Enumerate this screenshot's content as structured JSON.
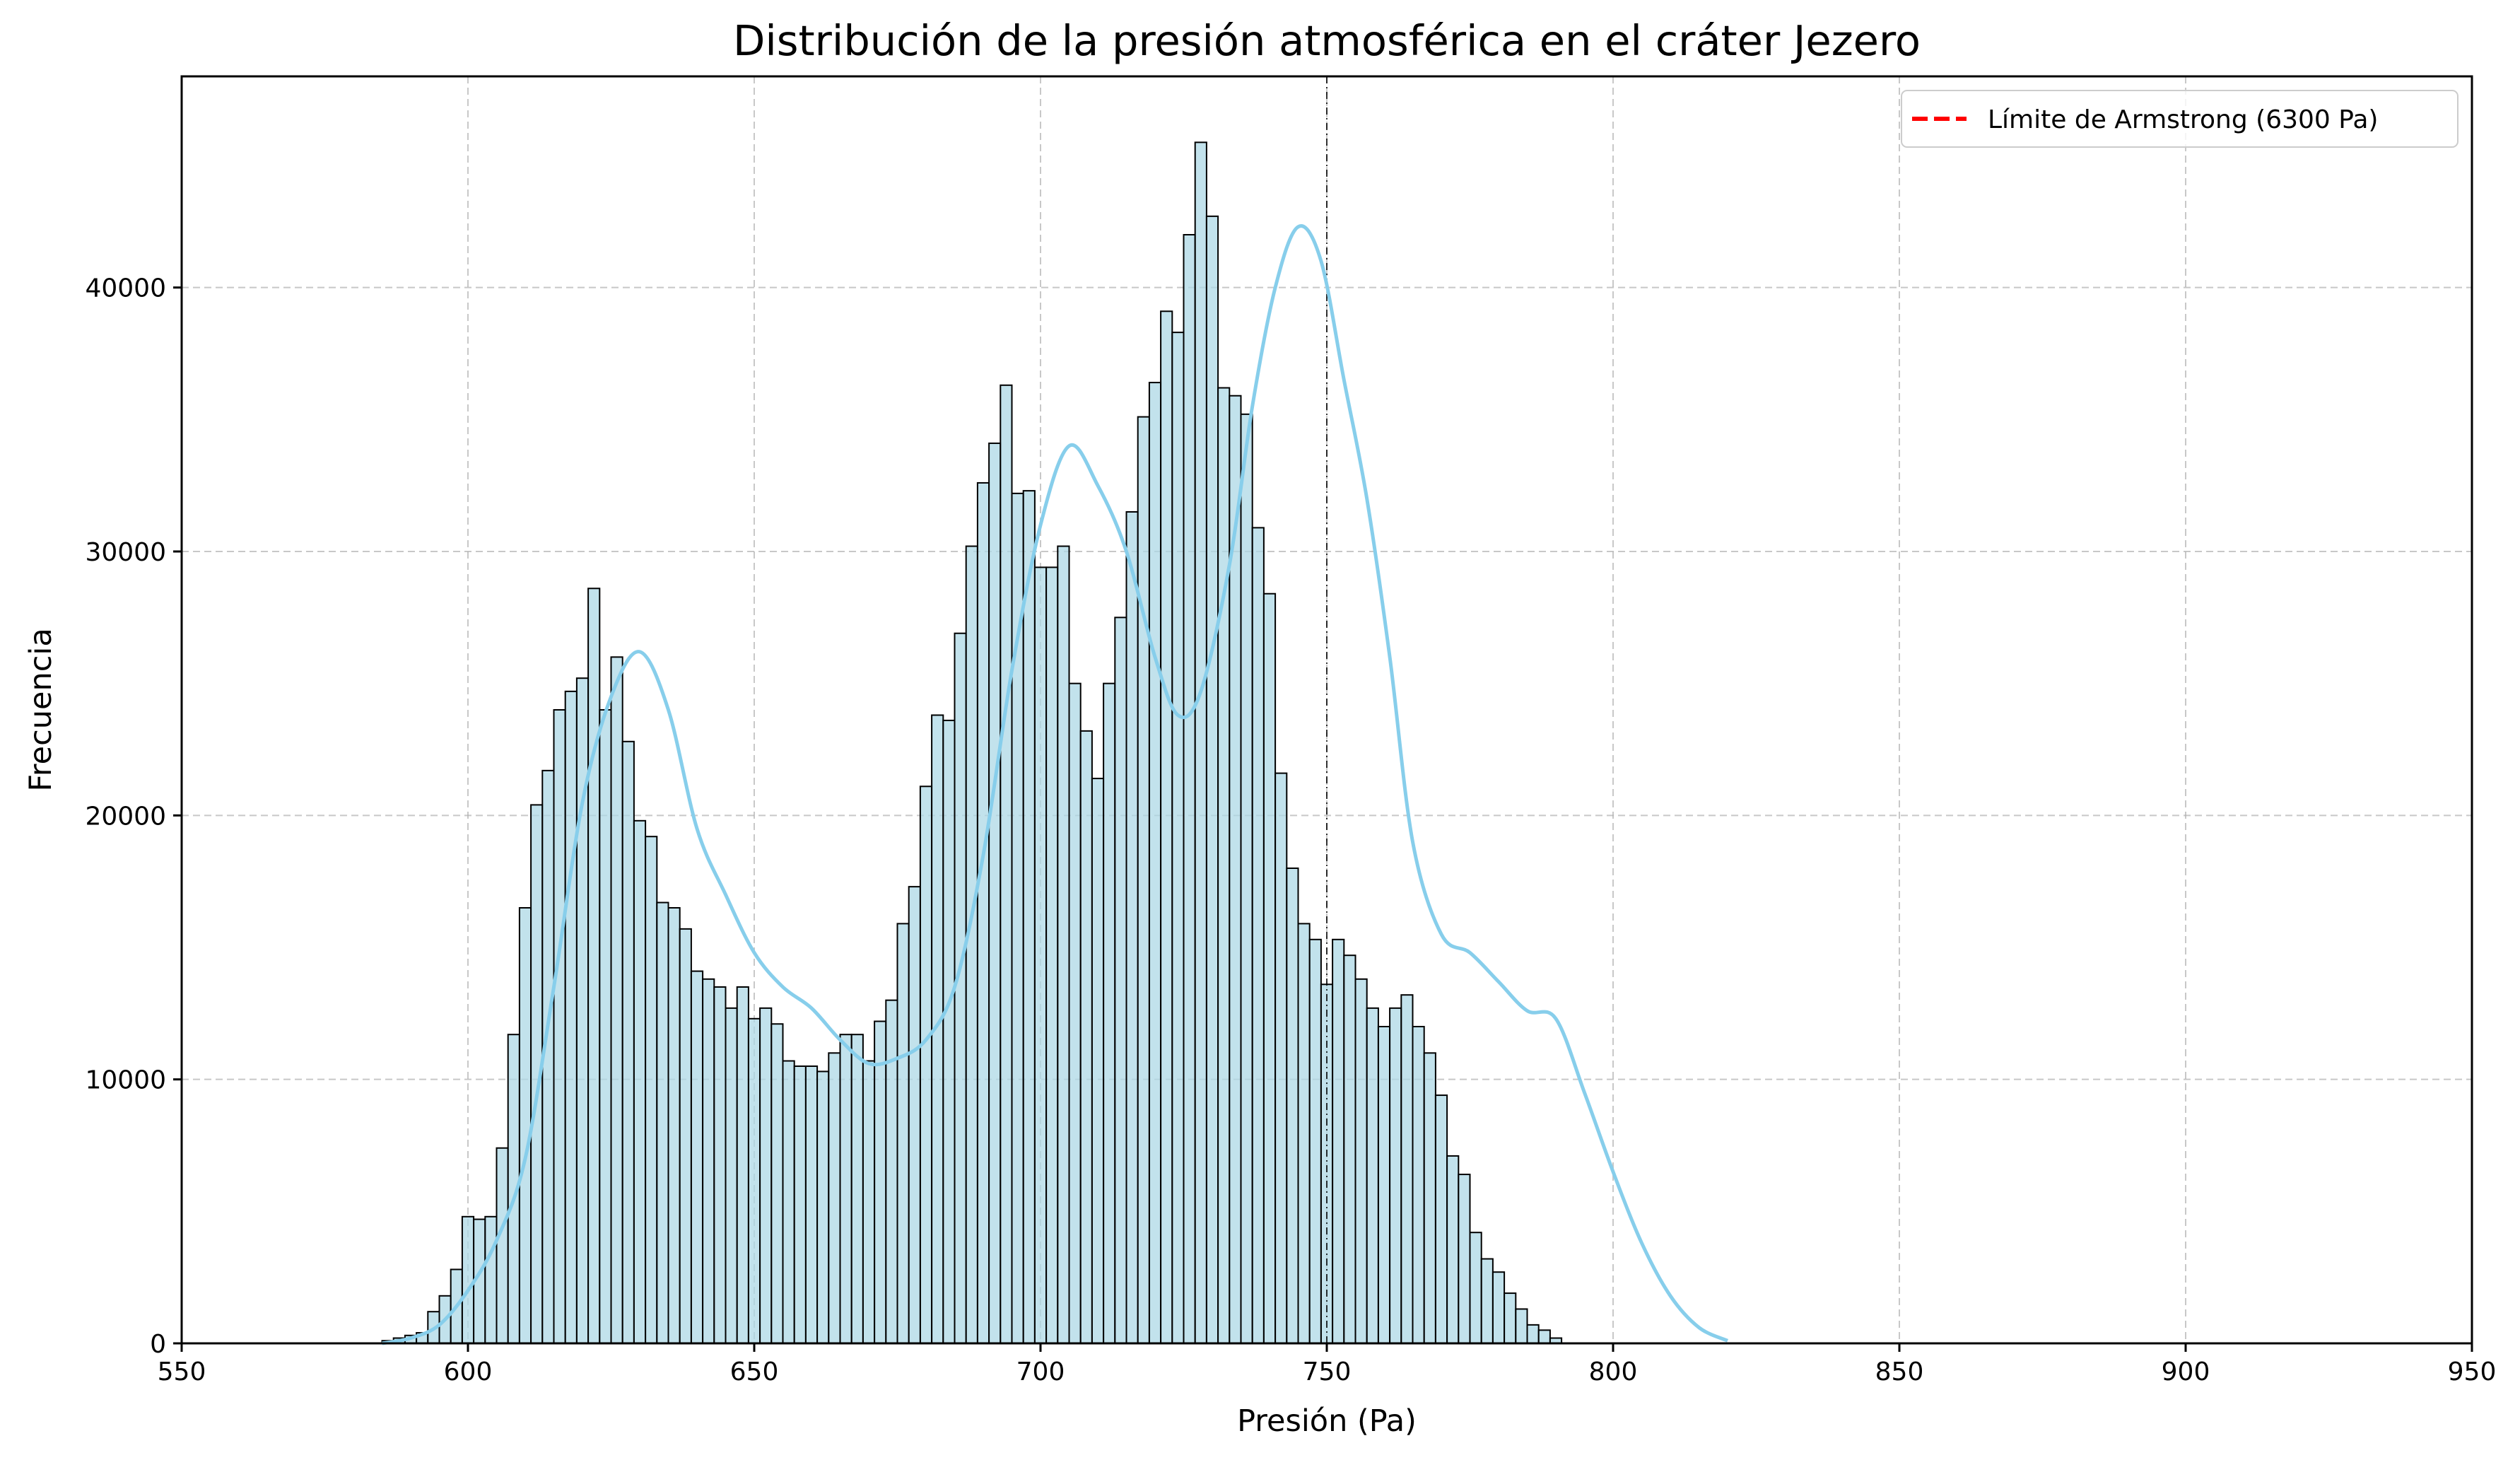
{
  "chart_data": {
    "type": "histogram",
    "title": "Distribución de la presión atmosférica en el cráter Jezero",
    "xlabel": "Presión (Pa)",
    "ylabel": "Frecuencia",
    "xlim": [
      550,
      950
    ],
    "ylim": [
      0,
      48000
    ],
    "xticks": [
      550,
      600,
      650,
      700,
      750,
      800,
      850,
      900,
      950
    ],
    "yticks": [
      0,
      10000,
      20000,
      30000,
      40000
    ],
    "grid": true,
    "legend": {
      "placement": "top-right",
      "entries": [
        {
          "label": "Límite de Armstrong (6300 Pa)",
          "color": "#ff0000",
          "style": "dashed"
        }
      ]
    },
    "bar_color": "#add8e6",
    "bar_edge_color": "#000000",
    "kde_color": "#87ceeb",
    "vline": {
      "x": 750,
      "color": "#000000",
      "style": "dashdot"
    },
    "bin_start": 585,
    "bin_width": 2,
    "values": [
      100,
      200,
      300,
      400,
      1200,
      1800,
      2800,
      4800,
      4700,
      4800,
      7400,
      11700,
      16500,
      20400,
      21700,
      24000,
      24700,
      25200,
      28600,
      24000,
      26000,
      22800,
      19800,
      19200,
      16700,
      16500,
      15700,
      14100,
      13800,
      13500,
      12700,
      13500,
      12300,
      12700,
      12100,
      10700,
      10500,
      10500,
      10300,
      11000,
      11700,
      11700,
      10700,
      12200,
      13000,
      15900,
      17300,
      21100,
      23800,
      23600,
      26900,
      30200,
      32600,
      34100,
      36300,
      32200,
      32300,
      29400,
      29400,
      30200,
      25000,
      23200,
      21400,
      25000,
      27500,
      31500,
      35100,
      36400,
      39100,
      38300,
      42000,
      45500,
      42700,
      36200,
      35900,
      35200,
      30900,
      28400,
      21600,
      18000,
      15900,
      15300,
      13600,
      15300,
      14700,
      13800,
      12700,
      12000,
      12700,
      13200,
      12000,
      11000,
      9400,
      7100,
      6400,
      4200,
      3200,
      2700,
      1900,
      1300,
      700,
      500,
      200
    ],
    "kde": [
      [
        585,
        0
      ],
      [
        590,
        200
      ],
      [
        595,
        700
      ],
      [
        600,
        2000
      ],
      [
        605,
        3900
      ],
      [
        610,
        7000
      ],
      [
        615,
        13500
      ],
      [
        620,
        20500
      ],
      [
        625,
        24500
      ],
      [
        630,
        26200
      ],
      [
        635,
        24000
      ],
      [
        640,
        19500
      ],
      [
        645,
        17000
      ],
      [
        650,
        14800
      ],
      [
        655,
        13500
      ],
      [
        660,
        12700
      ],
      [
        665,
        11500
      ],
      [
        670,
        10600
      ],
      [
        675,
        10800
      ],
      [
        680,
        11500
      ],
      [
        685,
        13500
      ],
      [
        690,
        18500
      ],
      [
        695,
        25500
      ],
      [
        700,
        31000
      ],
      [
        705,
        34000
      ],
      [
        710,
        32500
      ],
      [
        715,
        30000
      ],
      [
        720,
        26000
      ],
      [
        724,
        23800
      ],
      [
        728,
        24700
      ],
      [
        733,
        29500
      ],
      [
        737,
        35500
      ],
      [
        741,
        40000
      ],
      [
        745,
        42300
      ],
      [
        749,
        41000
      ],
      [
        753,
        36500
      ],
      [
        757,
        32000
      ],
      [
        761,
        26000
      ],
      [
        765,
        19000
      ],
      [
        770,
        15500
      ],
      [
        775,
        14800
      ],
      [
        780,
        13700
      ],
      [
        785,
        12600
      ],
      [
        790,
        12300
      ],
      [
        795,
        9500
      ],
      [
        800,
        6500
      ],
      [
        805,
        3800
      ],
      [
        810,
        1800
      ],
      [
        815,
        600
      ],
      [
        820,
        100
      ]
    ]
  }
}
